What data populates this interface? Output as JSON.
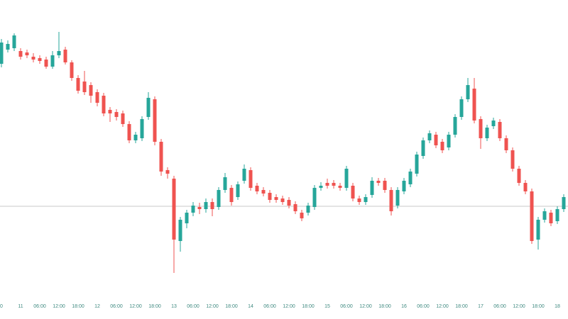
{
  "chart_data": {
    "type": "candlestick",
    "categories": [
      "0",
      null,
      null,
      "11",
      null,
      null,
      "06:00",
      null,
      null,
      "12:00",
      null,
      null,
      "18:00",
      null,
      null,
      "12",
      null,
      null,
      "06:00",
      null,
      null,
      "12:00",
      null,
      null,
      "18:00",
      null,
      null,
      "13",
      null,
      null,
      "06:00",
      null,
      null,
      "12:00",
      null,
      null,
      "18:00",
      null,
      null,
      "14",
      null,
      null,
      "06:00",
      null,
      null,
      "12:00",
      null,
      null,
      "18:00",
      null,
      null,
      "15",
      null,
      null,
      "06:00",
      null,
      null,
      "12:00",
      null,
      null,
      "18:00",
      null,
      null,
      "16",
      null,
      null,
      "06:00",
      null,
      null,
      "12:00",
      null,
      null,
      "18:00",
      null,
      null,
      "17",
      null,
      null,
      "06:00",
      null,
      null,
      "12:00",
      null,
      null,
      "18:00",
      null,
      null,
      "18",
      null
    ],
    "open": [
      33.0,
      35.0,
      35.2,
      34.8,
      34.6,
      34.0,
      33.8,
      33.6,
      32.6,
      34.2,
      35.0,
      33.2,
      31.0,
      30.5,
      30.0,
      29.0,
      28.5,
      26.5,
      26.2,
      26.0,
      24.5,
      22.2,
      22.5,
      25.5,
      28.0,
      22.0,
      18.0,
      16.8,
      8.0,
      10.5,
      12.0,
      12.8,
      12.5,
      13.5,
      12.8,
      15.2,
      15.5,
      14.2,
      16.5,
      18.0,
      15.8,
      15.2,
      14.8,
      14.2,
      14.0,
      13.8,
      13.2,
      12.0,
      12.0,
      12.8,
      15.5,
      16.2,
      16.2,
      15.8,
      15.5,
      15.8,
      14.0,
      13.5,
      14.5,
      16.5,
      16.5,
      15.2,
      13.0,
      15.0,
      16.0,
      17.5,
      20.0,
      22.2,
      23.0,
      22.0,
      21.2,
      23.0,
      25.5,
      28.0,
      29.5,
      25.2,
      22.5,
      24.2,
      24.8,
      22.5,
      20.8,
      18.2,
      16.2,
      15.0,
      8.2,
      11.0,
      12.0,
      10.8,
      12.5
    ],
    "high": [
      36.5,
      36.3,
      37.3,
      35.2,
      35.0,
      34.5,
      34.2,
      34.0,
      34.8,
      37.5,
      35.4,
      33.5,
      31.4,
      32.0,
      30.4,
      29.4,
      28.9,
      26.9,
      26.6,
      26.4,
      24.9,
      23.4,
      25.6,
      29.0,
      28.4,
      22.4,
      18.4,
      17.2,
      11.4,
      12.4,
      13.5,
      13.4,
      14.0,
      14.0,
      15.6,
      17.6,
      15.9,
      16.4,
      18.8,
      18.4,
      16.2,
      15.6,
      15.2,
      14.6,
      14.4,
      14.2,
      13.6,
      12.4,
      13.4,
      15.9,
      16.3,
      16.8,
      16.6,
      16.2,
      18.6,
      16.2,
      14.4,
      14.6,
      17.0,
      16.9,
      16.9,
      15.6,
      15.6,
      16.9,
      18.2,
      20.6,
      22.6,
      23.6,
      23.4,
      22.4,
      23.4,
      25.9,
      28.4,
      31.0,
      31.0,
      25.6,
      24.4,
      25.4,
      25.2,
      22.9,
      21.2,
      18.6,
      16.6,
      15.4,
      11.4,
      12.6,
      12.4,
      12.9,
      14.6
    ],
    "low": [
      32.5,
      34.6,
      34.8,
      33.6,
      33.8,
      33.2,
      33.0,
      32.3,
      32.3,
      33.8,
      32.9,
      30.6,
      28.8,
      28.6,
      27.5,
      27.0,
      25.6,
      24.8,
      25.0,
      24.1,
      21.8,
      21.8,
      22.1,
      25.1,
      21.5,
      17.2,
      16.8,
      3.5,
      6.5,
      9.8,
      11.5,
      11.8,
      12.0,
      11.5,
      12.4,
      14.8,
      13.0,
      13.8,
      16.1,
      15.1,
      14.6,
      14.3,
      13.4,
      13.4,
      13.1,
      12.6,
      11.8,
      10.8,
      11.6,
      12.4,
      15.1,
      15.4,
      15.4,
      15.1,
      15.1,
      13.6,
      13.1,
      13.1,
      14.1,
      15.8,
      14.8,
      11.6,
      12.6,
      14.6,
      15.6,
      17.1,
      19.6,
      21.8,
      21.1,
      20.4,
      20.8,
      22.6,
      25.1,
      27.6,
      24.6,
      21.0,
      22.1,
      23.8,
      22.1,
      20.4,
      17.8,
      15.8,
      14.6,
      7.6,
      6.8,
      10.6,
      10.1,
      10.4,
      12.1
    ],
    "close": [
      36.0,
      35.8,
      37.0,
      34.0,
      34.2,
      33.6,
      33.4,
      32.6,
      34.2,
      34.8,
      33.2,
      31.0,
      29.2,
      29.0,
      28.5,
      27.5,
      26.0,
      26.0,
      25.5,
      24.5,
      22.2,
      23.0,
      25.2,
      28.2,
      22.0,
      17.8,
      17.5,
      8.2,
      11.0,
      12.0,
      13.0,
      12.5,
      13.5,
      12.5,
      15.2,
      17.0,
      13.5,
      16.0,
      18.2,
      15.5,
      15.0,
      14.7,
      13.8,
      13.8,
      13.5,
      13.0,
      12.2,
      11.2,
      13.0,
      15.5,
      15.8,
      15.8,
      15.8,
      15.5,
      18.2,
      14.0,
      13.5,
      14.2,
      16.5,
      16.2,
      15.2,
      12.2,
      15.2,
      16.5,
      17.8,
      20.2,
      22.2,
      23.2,
      21.5,
      20.8,
      23.0,
      25.5,
      28.0,
      30.0,
      25.0,
      22.5,
      24.0,
      25.0,
      22.5,
      20.8,
      18.2,
      16.2,
      15.0,
      8.0,
      11.0,
      12.2,
      10.5,
      12.5,
      14.2
    ],
    "up_color": "#26a69a",
    "down_color": "#ef5350",
    "ylim": [
      0,
      42
    ],
    "reference_line": {
      "value": 12.9,
      "color": "#c8c8c8"
    }
  }
}
